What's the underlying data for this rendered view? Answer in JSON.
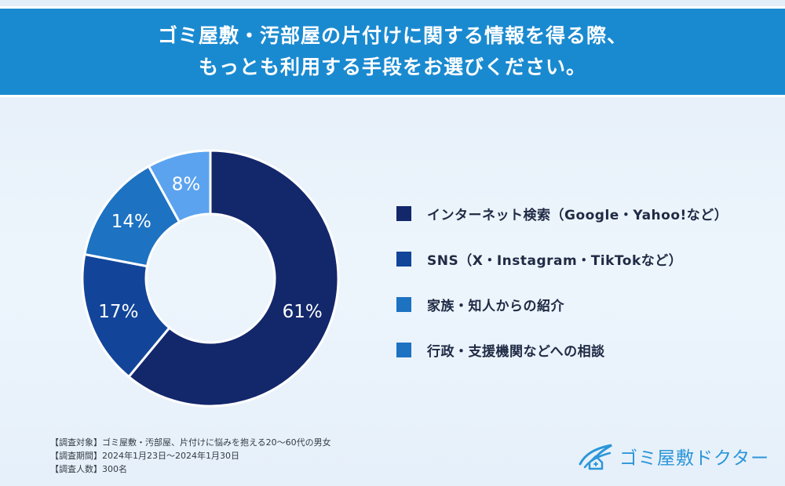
{
  "title": {
    "line1": "ゴミ屋敷・汚部屋の片付けに関する情報を得る際、",
    "line2": "もっとも利用する手段をお選びください。"
  },
  "chart_data": {
    "type": "pie",
    "donut": true,
    "categories": [
      "インターネット検索（Google・Yahoo!など）",
      "SNS（X・Instagram・TikTokなど）",
      "家族・知人からの紹介",
      "行政・支援機関などへの相談"
    ],
    "values": [
      61,
      17,
      14,
      8
    ],
    "labels": [
      "61%",
      "17%",
      "14%",
      "8%"
    ],
    "colors": [
      "#13276b",
      "#12459a",
      "#1d72c2",
      "#5ba3ef"
    ],
    "legend_colors": [
      "#13276b",
      "#12459a",
      "#1d72c2",
      "#1d72c2"
    ],
    "legend_position": "right"
  },
  "footnotes": [
    "【調査対象】ゴミ屋敷・汚部屋、片付けに悩みを抱える20〜60代の男女",
    "【調査期間】2024年1月23日〜2024年1月30日",
    "【調査人数】300名"
  ],
  "brand": {
    "name": "ゴミ屋敷ドクター",
    "icon": "house-wing-logo-icon",
    "color": "#2c96d8"
  }
}
